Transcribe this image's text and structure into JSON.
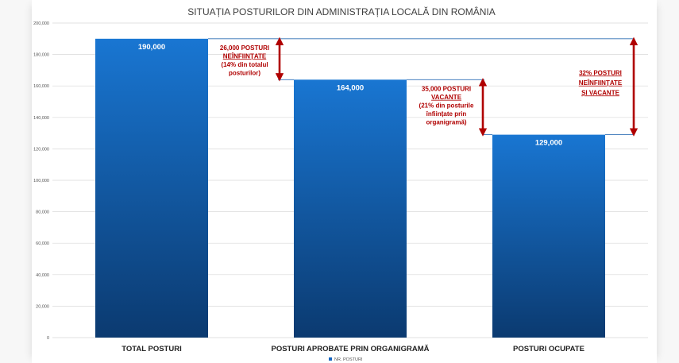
{
  "chart_data": {
    "type": "bar",
    "title": "SITUAȚIA POSTURILOR DIN ADMINISTRAȚIA LOCALĂ DIN ROMÂNIA",
    "categories": [
      "TOTAL POSTURI",
      "POSTURI APROBATE PRIN ORGANIGRAMĂ",
      "POSTURI OCUPATE"
    ],
    "series": [
      {
        "name": "NR. POSTURI",
        "values": [
          190000,
          164000,
          129000
        ],
        "color": "#1565c0"
      }
    ],
    "data_labels": [
      "190,000",
      "164,000",
      "129,000"
    ],
    "ylim": [
      0,
      200000
    ],
    "yticks": [
      0,
      20000,
      40000,
      60000,
      80000,
      100000,
      120000,
      140000,
      160000,
      180000,
      200000
    ],
    "ytick_labels": [
      "0",
      "20,000",
      "40,000",
      "60,000",
      "80,000",
      "100,000",
      "120,000",
      "140,000",
      "160,000",
      "180,000",
      "200,000"
    ],
    "grid": true,
    "legend_position": "bottom",
    "bar_gradient": [
      "#1976d2",
      "#0b3a70"
    ],
    "annotation_color": "#b00000",
    "annotations": [
      {
        "lines": [
          "26,000 POSTURI",
          "NEÎNFIINȚATE",
          "(14% din totalul",
          "posturilor)"
        ],
        "underline_line": 1,
        "from": 190000,
        "to": 164000
      },
      {
        "lines": [
          "35,000 POSTURI",
          "VACANTE",
          "(21% din posturile",
          "înființate prin",
          "organigramă)"
        ],
        "underline_line": 1,
        "from": 164000,
        "to": 129000
      },
      {
        "lines": [
          "32% POSTURI",
          "NEÎNFIINȚATE",
          "ȘI VACANTE"
        ],
        "underline_all": true,
        "from": 190000,
        "to": 129000
      }
    ]
  }
}
